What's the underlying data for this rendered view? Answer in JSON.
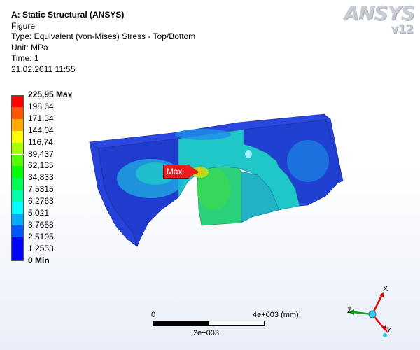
{
  "header": {
    "title": "A: Static Structural (ANSYS)",
    "lines": [
      "Figure",
      "Type: Equivalent (von-Mises) Stress - Top/Bottom",
      "Unit: MPa",
      "Time: 1",
      "21.02.2011 11:55"
    ]
  },
  "logo": {
    "brand": "ANSYS",
    "version": "v12"
  },
  "legend": {
    "entries": [
      {
        "label": "225,95 Max",
        "color": "#ff0000",
        "bold": true
      },
      {
        "label": "198,64",
        "color": "#ff5500",
        "bold": false
      },
      {
        "label": "171,34",
        "color": "#ffaa00",
        "bold": false
      },
      {
        "label": "144,04",
        "color": "#ffff00",
        "bold": false
      },
      {
        "label": "116,74",
        "color": "#aaff00",
        "bold": false
      },
      {
        "label": "89,437",
        "color": "#55ff00",
        "bold": false
      },
      {
        "label": "62,135",
        "color": "#00ff00",
        "bold": false
      },
      {
        "label": "34,833",
        "color": "#00ff55",
        "bold": false
      },
      {
        "label": "7,5315",
        "color": "#00ffaa",
        "bold": false
      },
      {
        "label": "6,2763",
        "color": "#00ffff",
        "bold": false
      },
      {
        "label": "5,021",
        "color": "#00aaff",
        "bold": false
      },
      {
        "label": "3,7658",
        "color": "#0055ff",
        "bold": false
      },
      {
        "label": "2,5105",
        "color": "#0000ff",
        "bold": false
      },
      {
        "label": "1,2553",
        "color": "#0000ff",
        "bold": false
      },
      {
        "label": "0 Min",
        "color": "#0000ff",
        "bold": true
      }
    ],
    "swatch_colors": [
      "#ff0000",
      "#ff5500",
      "#ffaa00",
      "#ffff00",
      "#aaff00",
      "#55ff00",
      "#00ff00",
      "#00ff55",
      "#00ffaa",
      "#00ffff",
      "#00aaff",
      "#0055ff",
      "#0000ff",
      "#0000ff"
    ]
  },
  "probe": {
    "label": "Max"
  },
  "scale": {
    "zero_label": "0",
    "end_label": "4e+003 (mm)",
    "mid_label": "2e+003"
  },
  "triad": {
    "x_label": "X",
    "y_label": "Y",
    "z_label": "Z"
  }
}
